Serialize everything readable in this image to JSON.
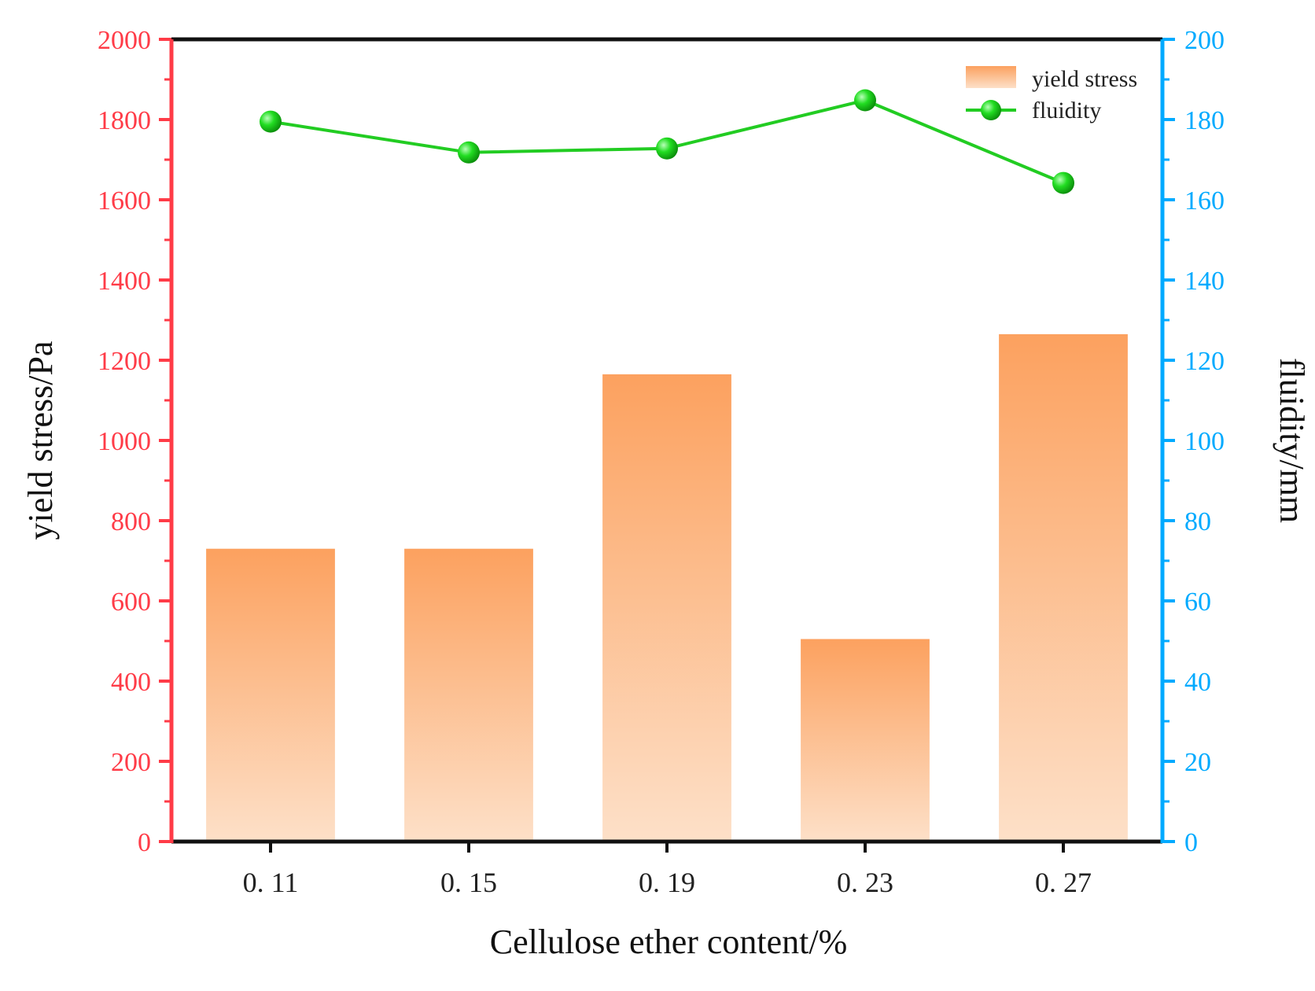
{
  "colors": {
    "left_axis": "#ff3b47",
    "right_axis": "#00aaff",
    "bar_top": "#fca15f",
    "bar_bottom": "#fde0c8",
    "line": "#22cc22",
    "marker": "#22dd22",
    "frame": "#111111"
  },
  "chart_data": {
    "type": "bar",
    "xlabel": "Cellulose ether content/%",
    "ylabel": "yield stress/Pa",
    "y2label": "fluidity/mm",
    "categories": [
      "0. 11",
      "0. 15",
      "0. 19",
      "0. 23",
      "0. 27"
    ],
    "ylim": [
      0,
      2000
    ],
    "y2lim": [
      0,
      200
    ],
    "yticks": [
      "0",
      "200",
      "400",
      "600",
      "800",
      "1000",
      "1200",
      "1400",
      "1600",
      "1800",
      "2000"
    ],
    "y2ticks": [
      "0",
      "20",
      "40",
      "60",
      "80",
      "100",
      "120",
      "140",
      "160",
      "180",
      "200"
    ],
    "series": [
      {
        "name": "yield stress",
        "type": "bar",
        "axis": "left",
        "values": [
          730,
          730,
          1165,
          505,
          1265
        ]
      },
      {
        "name": "fluidity",
        "type": "line",
        "axis": "right",
        "values": [
          179.5,
          171.8,
          172.8,
          184.8,
          164.2
        ]
      }
    ],
    "legend": {
      "position": "top-right",
      "entries": [
        "yield stress",
        "fluidity"
      ]
    }
  }
}
